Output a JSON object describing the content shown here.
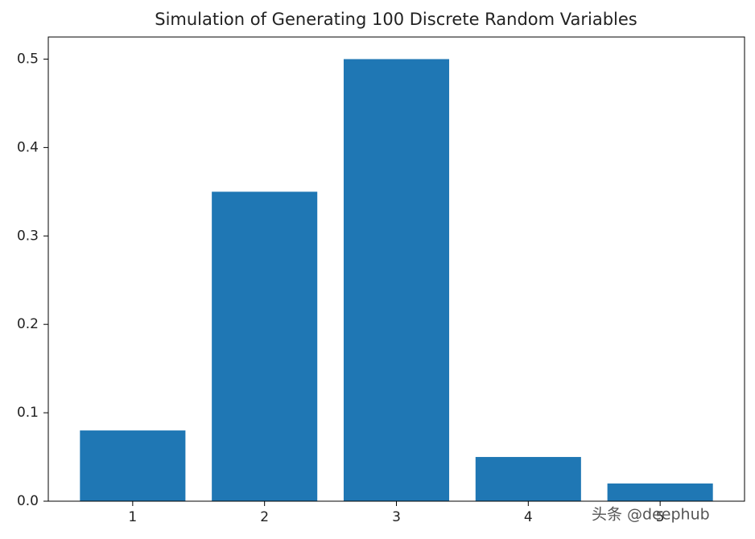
{
  "chart_data": {
    "type": "bar",
    "title": "Simulation of Generating 100 Discrete Random Variables",
    "x": [
      1,
      2,
      3,
      4,
      5
    ],
    "values": [
      0.08,
      0.35,
      0.5,
      0.05,
      0.02
    ],
    "color": "#1f77b4",
    "xlim": [
      0.36,
      5.64
    ],
    "xticks": [
      1,
      2,
      3,
      4,
      5
    ],
    "ylim": [
      0,
      0.525
    ],
    "yticks": [
      {
        "value": 0,
        "label": "0.0"
      },
      0.1,
      0.2,
      0.3,
      0.4,
      0.5
    ],
    "bar_width": 0.8,
    "grid": false,
    "watermark": "头条 @deephub"
  }
}
